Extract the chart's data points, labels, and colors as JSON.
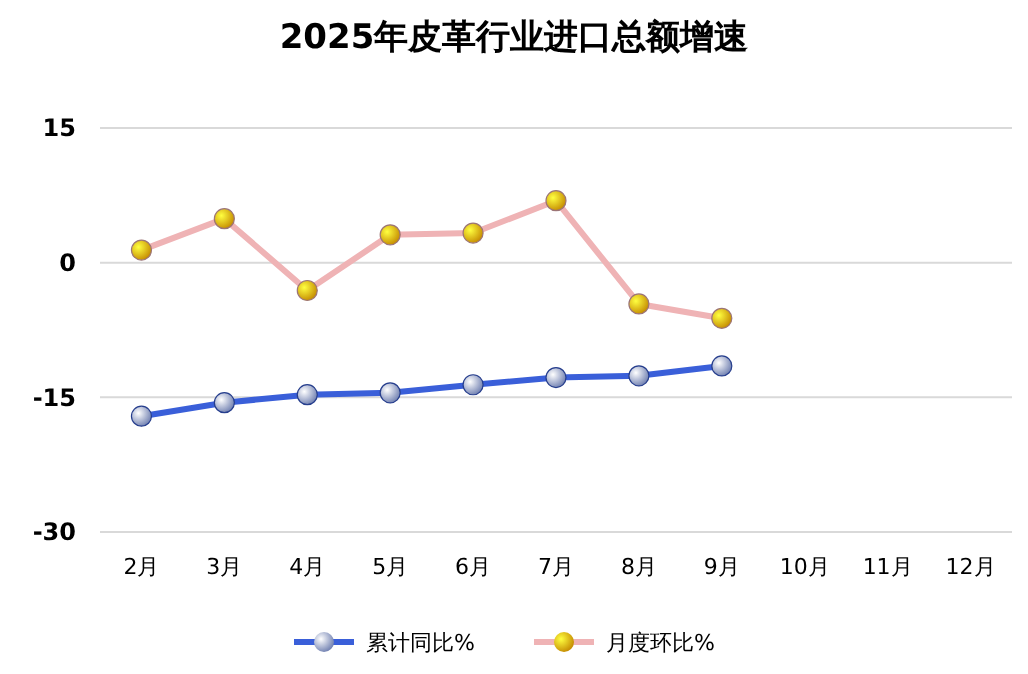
{
  "chart_data": {
    "type": "line",
    "title": "2025年皮革行业进口总额增速",
    "categories": [
      "2月",
      "3月",
      "4月",
      "5月",
      "6月",
      "7月",
      "8月",
      "9月",
      "10月",
      "11月",
      "12月"
    ],
    "series": [
      {
        "name": "累计同比%",
        "color": "#3a5fd9",
        "values": [
          -17.1,
          -15.6,
          -14.7,
          -14.5,
          -13.6,
          -12.8,
          -12.6,
          -11.5,
          null,
          null,
          null
        ]
      },
      {
        "name": "月度环比%",
        "color": "#efb3b5",
        "values": [
          1.4,
          4.9,
          -3.1,
          3.1,
          3.3,
          6.9,
          -4.6,
          -6.2,
          null,
          null,
          null
        ]
      }
    ],
    "ylim": [
      -30,
      15
    ],
    "yticks": [
      -30,
      -15,
      0,
      15
    ],
    "grid": "y",
    "legend": "bottom",
    "marker": "circle",
    "line_style": "solid"
  }
}
